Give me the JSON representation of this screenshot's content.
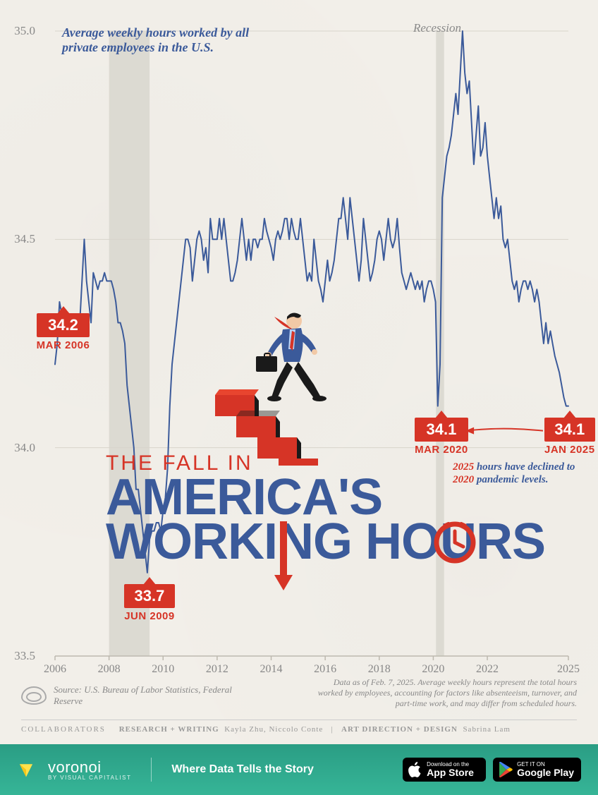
{
  "subtitle": "Average weekly hours worked by all private employees in the U.S.",
  "recession_label": "Recession",
  "chart": {
    "type": "line",
    "x_start_year": 2006,
    "x_end_year": 2025,
    "ylim": [
      33.5,
      35.0
    ],
    "ytick_step": 0.5,
    "yticks": [
      33.5,
      34.0,
      34.5,
      35.0
    ],
    "xticks": [
      2006,
      2008,
      2010,
      2012,
      2014,
      2016,
      2018,
      2020,
      2022,
      2025
    ],
    "line_color": "#3b5a9a",
    "line_width": 2,
    "background_color": "#f2efe9",
    "grid_color": "#d8d4cb",
    "recession_band_color": "#dcdad2",
    "recession_bands": [
      [
        2008.0,
        2009.5
      ],
      [
        2020.1,
        2020.4
      ]
    ],
    "series_monthly": [
      34.2,
      34.25,
      34.35,
      34.32,
      34.3,
      34.28,
      34.3,
      34.3,
      34.3,
      34.3,
      34.3,
      34.3,
      34.4,
      34.5,
      34.4,
      34.35,
      34.3,
      34.42,
      34.4,
      34.38,
      34.4,
      34.4,
      34.42,
      34.4,
      34.4,
      34.4,
      34.38,
      34.35,
      34.3,
      34.3,
      34.28,
      34.25,
      34.15,
      34.1,
      34.05,
      34.0,
      33.9,
      33.9,
      33.85,
      33.8,
      33.75,
      33.7,
      33.78,
      33.8,
      33.8,
      33.82,
      33.82,
      33.8,
      33.85,
      33.88,
      33.95,
      34.1,
      34.2,
      34.25,
      34.3,
      34.35,
      34.4,
      34.45,
      34.5,
      34.5,
      34.48,
      34.4,
      34.45,
      34.5,
      34.52,
      34.5,
      34.45,
      34.48,
      34.42,
      34.55,
      34.5,
      34.5,
      34.5,
      34.55,
      34.5,
      34.55,
      34.5,
      34.45,
      34.4,
      34.4,
      34.42,
      34.45,
      34.5,
      34.55,
      34.5,
      34.45,
      34.5,
      34.45,
      34.5,
      34.5,
      34.48,
      34.5,
      34.5,
      34.55,
      34.52,
      34.5,
      34.48,
      34.45,
      34.5,
      34.52,
      34.5,
      34.52,
      34.55,
      34.55,
      34.5,
      34.55,
      34.52,
      34.5,
      34.5,
      34.55,
      34.5,
      34.45,
      34.4,
      34.42,
      34.4,
      34.5,
      34.45,
      34.4,
      34.38,
      34.35,
      34.4,
      34.45,
      34.4,
      34.42,
      34.45,
      34.5,
      34.55,
      34.55,
      34.6,
      34.55,
      34.5,
      34.6,
      34.55,
      34.5,
      34.45,
      34.4,
      34.45,
      34.55,
      34.5,
      34.45,
      34.4,
      34.42,
      34.45,
      34.5,
      34.52,
      34.5,
      34.45,
      34.5,
      34.55,
      34.5,
      34.48,
      34.5,
      34.55,
      34.48,
      34.42,
      34.4,
      34.38,
      34.4,
      34.42,
      34.4,
      34.38,
      34.4,
      34.38,
      34.4,
      34.35,
      34.38,
      34.4,
      34.4,
      34.38,
      34.35,
      34.1,
      34.2,
      34.6,
      34.65,
      34.7,
      34.72,
      34.75,
      34.8,
      34.85,
      34.8,
      34.9,
      35.0,
      34.9,
      34.85,
      34.88,
      34.78,
      34.68,
      34.75,
      34.82,
      34.7,
      34.72,
      34.78,
      34.7,
      34.65,
      34.6,
      34.55,
      34.6,
      34.55,
      34.58,
      34.5,
      34.48,
      34.5,
      34.45,
      34.4,
      34.38,
      34.4,
      34.35,
      34.38,
      34.4,
      34.4,
      34.38,
      34.4,
      34.38,
      34.35,
      34.38,
      34.35,
      34.3,
      34.25,
      34.3,
      34.25,
      34.28,
      34.25,
      34.22,
      34.2,
      34.18,
      34.15,
      34.12,
      34.1,
      34.1
    ]
  },
  "callouts": [
    {
      "value": "34.2",
      "date": "MAR 2006",
      "year": 2006.2
    },
    {
      "value": "33.7",
      "date": "JUN 2009",
      "year": 2009.45
    },
    {
      "value": "34.1",
      "date": "MAR 2020",
      "year": 2020.2
    },
    {
      "value": "34.1",
      "date": "JAN 2025",
      "year": 2025.0
    }
  ],
  "pandemic_note_1": "2025",
  "pandemic_note_2": " hours have declined to ",
  "pandemic_note_3": "2020",
  "pandemic_note_4": " pandemic levels.",
  "title_small": "THE FALL IN",
  "title_line1": "AMERICA'S",
  "title_line2": "WORKING HOURS",
  "source_label": "Source: U.S. Bureau of Labor Statistics, Federal Reserve",
  "data_note": "Data as of Feb. 7, 2025. Average weekly hours represent the total hours worked by employees, accounting for factors like absenteeism, turnover, and part-time work, and may differ from scheduled hours.",
  "collab_label": "COLLABORATORS",
  "collab_research_label": "RESEARCH + WRITING",
  "collab_research_names": "Kayla Zhu, Niccolo Conte",
  "collab_art_label": "ART DIRECTION + DESIGN",
  "collab_art_names": "Sabrina Lam",
  "footer": {
    "brand": "voronoi",
    "brand_sub": "BY VISUAL CAPITALIST",
    "tagline": "Where Data Tells the Story",
    "appstore_small": "Download on the",
    "appstore_big": "App Store",
    "play_small": "GET IT ON",
    "play_big": "Google Play"
  },
  "colors": {
    "red": "#d63426",
    "blue": "#3b5a9a",
    "bg": "#f2efe9",
    "footer_green": "#32a98f"
  }
}
